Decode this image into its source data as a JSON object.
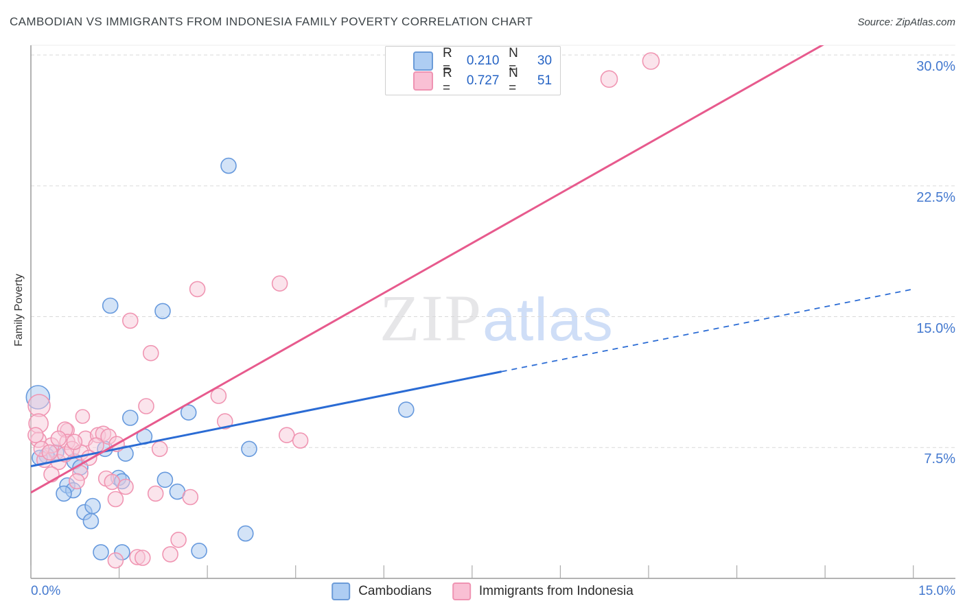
{
  "header": {
    "title": "CAMBODIAN VS IMMIGRANTS FROM INDONESIA FAMILY POVERTY CORRELATION CHART",
    "source": "Source: ZipAtlas.com"
  },
  "legend_box": {
    "rows": [
      {
        "series": "Cambodians",
        "r_label": "R =",
        "r_value": "0.210",
        "n_label": "N =",
        "n_value": "30",
        "swatch_fill": "#aecdf3",
        "swatch_stroke": "#6b9bd8"
      },
      {
        "series": "Immigrants from Indonesia",
        "r_label": "R =",
        "r_value": "0.727",
        "n_label": "N =",
        "n_value": "51",
        "swatch_fill": "#f9c0d4",
        "swatch_stroke": "#ef93b2"
      }
    ]
  },
  "watermark": {
    "part1": "ZIP",
    "part2": "atlas"
  },
  "y_axis": {
    "label": "Family Poverty",
    "tick_labels": [
      "30.0%",
      "22.5%",
      "15.0%",
      "7.5%"
    ],
    "tick_values": [
      30,
      22.5,
      15,
      7.5
    ]
  },
  "x_axis": {
    "min_label": "0.0%",
    "max_label": "15.0%",
    "min": 0,
    "max": 15,
    "minor_tick_step": 1.5
  },
  "bottom_legend": [
    {
      "label": "Cambodians",
      "swatch_fill": "#aecdf3",
      "swatch_stroke": "#6b9bd8"
    },
    {
      "label": "Immigrants from Indonesia",
      "swatch_fill": "#f9c0d4",
      "swatch_stroke": "#ef93b2"
    }
  ],
  "chart_data": {
    "type": "scatter",
    "title": "CAMBODIAN VS IMMIGRANTS FROM INDONESIA FAMILY POVERTY CORRELATION CHART",
    "xlabel": "",
    "ylabel": "Family Poverty",
    "x_unit": "%",
    "y_unit": "%",
    "xlim": [
      0,
      15
    ],
    "ylim": [
      0,
      30.6
    ],
    "gridlines_y": [
      7.5,
      15,
      22.5,
      30
    ],
    "grid_on": true,
    "legend_position": "top-center and bottom-center",
    "series": [
      {
        "name": "Cambodians",
        "R": 0.21,
        "N": 30,
        "point_stroke": "#6699dd",
        "point_fill": "#a8c8f0",
        "points": [
          [
            3.36,
            23.65,
            11
          ],
          [
            1.35,
            15.63,
            11
          ],
          [
            2.24,
            15.32,
            11
          ],
          [
            0.12,
            10.38,
            17
          ],
          [
            1.69,
            9.2,
            11
          ],
          [
            2.68,
            9.51,
            11
          ],
          [
            6.38,
            9.67,
            11
          ],
          [
            3.71,
            7.42,
            11
          ],
          [
            1.26,
            7.42,
            11
          ],
          [
            0.43,
            7.22,
            11
          ],
          [
            0.27,
            7.03,
            11
          ],
          [
            0.15,
            6.91,
            11
          ],
          [
            1.61,
            7.15,
            11
          ],
          [
            1.93,
            8.13,
            11
          ],
          [
            0.74,
            6.71,
            11
          ],
          [
            0.84,
            6.36,
            11
          ],
          [
            0.62,
            5.33,
            11
          ],
          [
            0.72,
            5.05,
            11
          ],
          [
            0.56,
            4.86,
            11
          ],
          [
            1.49,
            5.76,
            11
          ],
          [
            1.55,
            5.57,
            11
          ],
          [
            2.28,
            5.65,
            11
          ],
          [
            2.49,
            4.97,
            11
          ],
          [
            0.91,
            3.79,
            11
          ],
          [
            1.05,
            4.15,
            11
          ],
          [
            1.02,
            3.28,
            11
          ],
          [
            1.19,
            1.5,
            11
          ],
          [
            1.55,
            1.5,
            11
          ],
          [
            2.86,
            1.58,
            11
          ],
          [
            3.65,
            2.57,
            11
          ]
        ],
        "trend": {
          "color": "#2a6bd4",
          "solid": [
            [
              0,
              6.43
            ],
            [
              8,
              11.85
            ]
          ],
          "dashed": [
            [
              8,
              11.85
            ],
            [
              15,
              16.58
            ]
          ]
        }
      },
      {
        "name": "Immigrants from Indonesia",
        "R": 0.727,
        "N": 51,
        "point_stroke": "#f095b2",
        "point_fill": "#f7c9da",
        "points": [
          [
            10.54,
            29.65,
            12
          ],
          [
            9.83,
            28.62,
            12
          ],
          [
            4.23,
            16.9,
            11
          ],
          [
            2.83,
            16.58,
            11
          ],
          [
            1.69,
            14.77,
            11
          ],
          [
            2.04,
            12.91,
            11
          ],
          [
            0.14,
            9.91,
            16
          ],
          [
            0.13,
            8.88,
            14
          ],
          [
            0.13,
            7.94,
            11
          ],
          [
            0.88,
            9.28,
            10
          ],
          [
            0.62,
            8.49,
            10
          ],
          [
            1.96,
            9.87,
            11
          ],
          [
            3.19,
            10.46,
            11
          ],
          [
            3.3,
            9.0,
            11
          ],
          [
            0.08,
            8.21,
            11
          ],
          [
            0.35,
            7.62,
            11
          ],
          [
            0.58,
            8.53,
            11
          ],
          [
            0.62,
            7.82,
            11
          ],
          [
            0.93,
            8.01,
            11
          ],
          [
            1.14,
            8.21,
            11
          ],
          [
            1.23,
            8.29,
            11
          ],
          [
            1.32,
            8.13,
            11
          ],
          [
            0.23,
            6.79,
            11
          ],
          [
            0.47,
            6.67,
            11
          ],
          [
            0.35,
            5.96,
            11
          ],
          [
            0.84,
            6.04,
            11
          ],
          [
            0.78,
            5.57,
            11
          ],
          [
            1.28,
            5.72,
            11
          ],
          [
            1.38,
            5.53,
            11
          ],
          [
            1.61,
            5.25,
            11
          ],
          [
            1.44,
            4.54,
            11
          ],
          [
            2.12,
            4.86,
            11
          ],
          [
            2.71,
            4.66,
            11
          ],
          [
            1.44,
            1.03,
            11
          ],
          [
            1.81,
            1.22,
            11
          ],
          [
            1.9,
            1.18,
            11
          ],
          [
            2.37,
            1.38,
            11
          ],
          [
            2.51,
            2.21,
            11
          ],
          [
            4.35,
            8.21,
            11
          ],
          [
            4.58,
            7.9,
            11
          ],
          [
            0.18,
            7.42,
            11
          ],
          [
            0.32,
            7.22,
            11
          ],
          [
            0.58,
            7.11,
            11
          ],
          [
            0.7,
            7.42,
            11
          ],
          [
            0.85,
            7.22,
            11
          ],
          [
            0.99,
            6.91,
            11
          ],
          [
            1.11,
            7.62,
            11
          ],
          [
            2.19,
            7.42,
            11
          ],
          [
            0.74,
            7.82,
            11
          ],
          [
            0.47,
            8.01,
            11
          ],
          [
            1.46,
            7.7,
            11
          ]
        ],
        "trend": {
          "color": "#e75a8d",
          "solid": [
            [
              0,
              4.92
            ],
            [
              15,
              33.51
            ]
          ],
          "clip_top": true
        }
      }
    ]
  }
}
